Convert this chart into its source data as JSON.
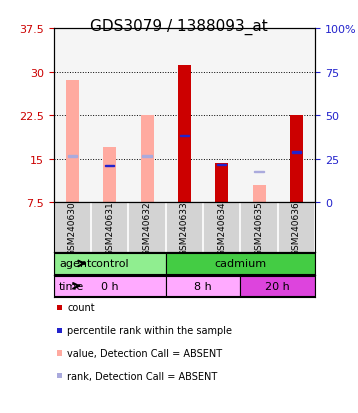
{
  "title": "GDS3079 / 1388093_at",
  "samples": [
    "GSM240630",
    "GSM240631",
    "GSM240632",
    "GSM240633",
    "GSM240634",
    "GSM240635",
    "GSM240636"
  ],
  "pink_bars": [
    28.5,
    17.0,
    22.5,
    null,
    null,
    10.5,
    null
  ],
  "pink_bar_bottom": [
    7.5,
    7.5,
    7.5,
    null,
    null,
    7.5,
    null
  ],
  "red_bars": [
    null,
    null,
    null,
    31.2,
    14.2,
    null,
    22.5
  ],
  "red_bar_bottom": [
    null,
    null,
    null,
    7.5,
    7.5,
    null,
    7.5
  ],
  "blue_squares": [
    null,
    13.8,
    null,
    19.0,
    14.0,
    null,
    16.2
  ],
  "light_blue_squares": [
    15.5,
    null,
    15.5,
    null,
    null,
    12.8,
    null
  ],
  "ylim_left": [
    7.5,
    37.5
  ],
  "ylim_right": [
    0,
    100
  ],
  "yticks_left": [
    7.5,
    15.0,
    22.5,
    30.0,
    37.5
  ],
  "yticks_right": [
    0,
    25,
    50,
    75,
    100
  ],
  "bg_plot": "#f5f5f5",
  "bg_axis": "#d3d3d3",
  "color_red": "#cc0000",
  "color_pink": "#ffaaa0",
  "color_blue": "#2222cc",
  "color_light_blue": "#aaaadd",
  "color_control": "#90ee90",
  "color_cadmium": "#44cc44",
  "color_time_light": "#ffaaff",
  "color_time_dark": "#dd44dd",
  "legend_items": [
    "count",
    "percentile rank within the sample",
    "value, Detection Call = ABSENT",
    "rank, Detection Call = ABSENT"
  ],
  "legend_colors": [
    "#cc0000",
    "#2222cc",
    "#ffaaa0",
    "#aaaadd"
  ]
}
